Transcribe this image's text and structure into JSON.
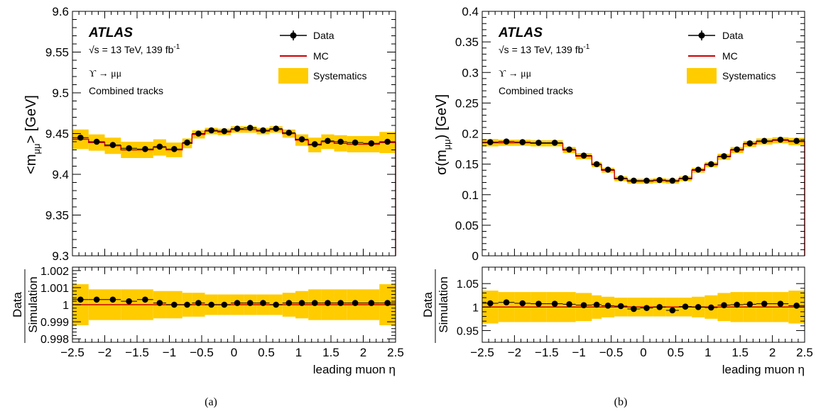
{
  "figure": {
    "panels": [
      {
        "caption": "(a)",
        "experiment": "ATLAS",
        "energy_label": "√s = 13 TeV, 139 fb",
        "lumi_exponent": "-1",
        "process_label": "ϒ → μμ",
        "track_label": "Combined tracks",
        "legend": {
          "data": "Data",
          "mc": "MC",
          "syst": "Systematics"
        },
        "ylabel_main": "<m",
        "ylabel_main_sub": "μμ",
        "ylabel_main_suffix": "> [GeV]",
        "ylabel_ratio_num": "Data",
        "ylabel_ratio_den": "Simulation",
        "xlabel": "leading muon η"
      },
      {
        "caption": "(b)",
        "experiment": "ATLAS",
        "energy_label": "√s = 13 TeV, 139 fb",
        "lumi_exponent": "-1",
        "process_label": "ϒ → μμ",
        "track_label": "Combined tracks",
        "legend": {
          "data": "Data",
          "mc": "MC",
          "syst": "Systematics"
        },
        "ylabel_main": "σ(m",
        "ylabel_main_sub": "μμ",
        "ylabel_main_suffix": ") [GeV]",
        "ylabel_ratio_num": "Data",
        "ylabel_ratio_den": "Simulation",
        "xlabel": "leading muon η"
      }
    ]
  },
  "colors": {
    "data": "#000000",
    "mc": "#cc0000",
    "syst": "#ffcc00"
  },
  "chart_data": [
    {
      "type": "line",
      "x_edges": [
        -2.5,
        -2.25,
        -2.0,
        -1.75,
        -1.5,
        -1.25,
        -1.05,
        -0.8,
        -0.65,
        -0.45,
        -0.25,
        -0.05,
        0.15,
        0.35,
        0.55,
        0.75,
        0.95,
        1.15,
        1.35,
        1.55,
        1.75,
        2.0,
        2.25,
        2.5
      ],
      "x": [
        -2.375,
        -2.125,
        -1.875,
        -1.625,
        -1.375,
        -1.15,
        -0.925,
        -0.725,
        -0.55,
        -0.35,
        -0.15,
        0.05,
        0.25,
        0.45,
        0.65,
        0.85,
        1.05,
        1.25,
        1.45,
        1.65,
        1.875,
        2.125,
        2.375
      ],
      "main": {
        "ylim": [
          9.3,
          9.6
        ],
        "yticks": [
          9.3,
          9.35,
          9.4,
          9.45,
          9.5,
          9.55,
          9.6
        ],
        "ytick_labels": [
          "9.3",
          "9.35",
          "9.4",
          "9.45",
          "9.5",
          "9.55",
          "9.6"
        ],
        "data": [
          9.445,
          9.44,
          9.436,
          9.432,
          9.431,
          9.434,
          9.431,
          9.439,
          9.45,
          9.454,
          9.453,
          9.456,
          9.457,
          9.454,
          9.456,
          9.451,
          9.443,
          9.437,
          9.441,
          9.44,
          9.439,
          9.438,
          9.44
        ],
        "mc": [
          9.443,
          9.439,
          9.435,
          9.43,
          9.43,
          9.433,
          9.43,
          9.438,
          9.449,
          9.453,
          9.452,
          9.455,
          9.455,
          9.453,
          9.455,
          9.45,
          9.442,
          9.436,
          9.44,
          9.438,
          9.437,
          9.437,
          9.439
        ],
        "syst": [
          0.012,
          0.01,
          0.01,
          0.01,
          0.01,
          0.01,
          0.009,
          0.006,
          0.005,
          0.004,
          0.004,
          0.004,
          0.004,
          0.004,
          0.004,
          0.005,
          0.007,
          0.009,
          0.009,
          0.01,
          0.01,
          0.01,
          0.013
        ]
      },
      "ratio": {
        "ylim": [
          0.9978,
          1.0022
        ],
        "yticks": [
          0.998,
          0.999,
          1.0,
          1.001,
          1.002
        ],
        "ytick_labels": [
          "0.998",
          "0.999",
          "1",
          "1.001",
          "1.002"
        ],
        "values": [
          1.0003,
          1.0003,
          1.0003,
          1.0002,
          1.0003,
          1.0001,
          1.0,
          1.0,
          1.0001,
          1.0,
          1.0,
          1.0001,
          1.0001,
          1.0001,
          1.0,
          1.0001,
          1.0001,
          1.0001,
          1.0001,
          1.0001,
          1.0001,
          1.0001,
          1.0001
        ],
        "syst": [
          0.0012,
          0.0009,
          0.0009,
          0.0009,
          0.0009,
          0.0008,
          0.0008,
          0.0007,
          0.0007,
          0.0006,
          0.0006,
          0.0006,
          0.0006,
          0.0006,
          0.0006,
          0.0007,
          0.0008,
          0.0009,
          0.0009,
          0.0009,
          0.0009,
          0.0009,
          0.0012
        ]
      },
      "xlim": [
        -2.5,
        2.5
      ],
      "xticks": [
        -2.5,
        -2,
        -1.5,
        -1,
        -0.5,
        0,
        0.5,
        1,
        1.5,
        2,
        2.5
      ],
      "xtick_labels": [
        "−2.5",
        "−2",
        "−1.5",
        "−1",
        "−0.5",
        "0",
        "0.5",
        "1",
        "1.5",
        "2",
        "2.5"
      ]
    },
    {
      "type": "line",
      "x_edges": [
        -2.5,
        -2.25,
        -2.0,
        -1.75,
        -1.5,
        -1.25,
        -1.05,
        -0.8,
        -0.65,
        -0.45,
        -0.25,
        -0.05,
        0.15,
        0.35,
        0.55,
        0.75,
        0.95,
        1.15,
        1.35,
        1.55,
        1.75,
        2.0,
        2.25,
        2.5
      ],
      "x": [
        -2.375,
        -2.125,
        -1.875,
        -1.625,
        -1.375,
        -1.15,
        -0.925,
        -0.725,
        -0.55,
        -0.35,
        -0.15,
        0.05,
        0.25,
        0.45,
        0.65,
        0.85,
        1.05,
        1.25,
        1.45,
        1.65,
        1.875,
        2.125,
        2.375
      ],
      "main": {
        "ylim": [
          0,
          0.4
        ],
        "yticks": [
          0,
          0.05,
          0.1,
          0.15,
          0.2,
          0.25,
          0.3,
          0.35,
          0.4
        ],
        "ytick_labels": [
          "0",
          "0.05",
          "0.1",
          "0.15",
          "0.2",
          "0.25",
          "0.3",
          "0.35",
          "0.4"
        ],
        "data": [
          0.186,
          0.187,
          0.186,
          0.185,
          0.185,
          0.174,
          0.164,
          0.15,
          0.141,
          0.127,
          0.123,
          0.123,
          0.124,
          0.123,
          0.127,
          0.141,
          0.15,
          0.163,
          0.174,
          0.184,
          0.188,
          0.19,
          0.188
        ],
        "mc": [
          0.185,
          0.185,
          0.185,
          0.184,
          0.184,
          0.173,
          0.163,
          0.149,
          0.14,
          0.126,
          0.122,
          0.122,
          0.123,
          0.122,
          0.126,
          0.14,
          0.149,
          0.162,
          0.173,
          0.183,
          0.187,
          0.189,
          0.187
        ],
        "syst": [
          0.006,
          0.005,
          0.005,
          0.005,
          0.005,
          0.005,
          0.005,
          0.004,
          0.004,
          0.004,
          0.004,
          0.004,
          0.004,
          0.004,
          0.004,
          0.004,
          0.004,
          0.005,
          0.005,
          0.005,
          0.005,
          0.005,
          0.006
        ]
      },
      "ratio": {
        "ylim": [
          0.925,
          1.085
        ],
        "yticks": [
          0.95,
          1.0,
          1.05
        ],
        "ytick_labels": [
          "0.95",
          "1",
          "1.05"
        ],
        "values": [
          1.008,
          1.01,
          1.008,
          1.007,
          1.007,
          1.006,
          1.004,
          1.005,
          1.003,
          1.002,
          0.996,
          0.998,
          1.0,
          0.993,
          1.001,
          1.0,
          0.999,
          1.004,
          1.005,
          1.006,
          1.007,
          1.007,
          1.003
        ],
        "syst": [
          0.035,
          0.032,
          0.032,
          0.032,
          0.032,
          0.032,
          0.03,
          0.025,
          0.022,
          0.02,
          0.02,
          0.02,
          0.02,
          0.02,
          0.02,
          0.022,
          0.025,
          0.03,
          0.032,
          0.032,
          0.032,
          0.032,
          0.035
        ]
      },
      "xlim": [
        -2.5,
        2.5
      ],
      "xticks": [
        -2.5,
        -2,
        -1.5,
        -1,
        -0.5,
        0,
        0.5,
        1,
        1.5,
        2,
        2.5
      ],
      "xtick_labels": [
        "−2.5",
        "−2",
        "−1.5",
        "−1",
        "−0.5",
        "0",
        "0.5",
        "1",
        "1.5",
        "2",
        "2.5"
      ]
    }
  ]
}
